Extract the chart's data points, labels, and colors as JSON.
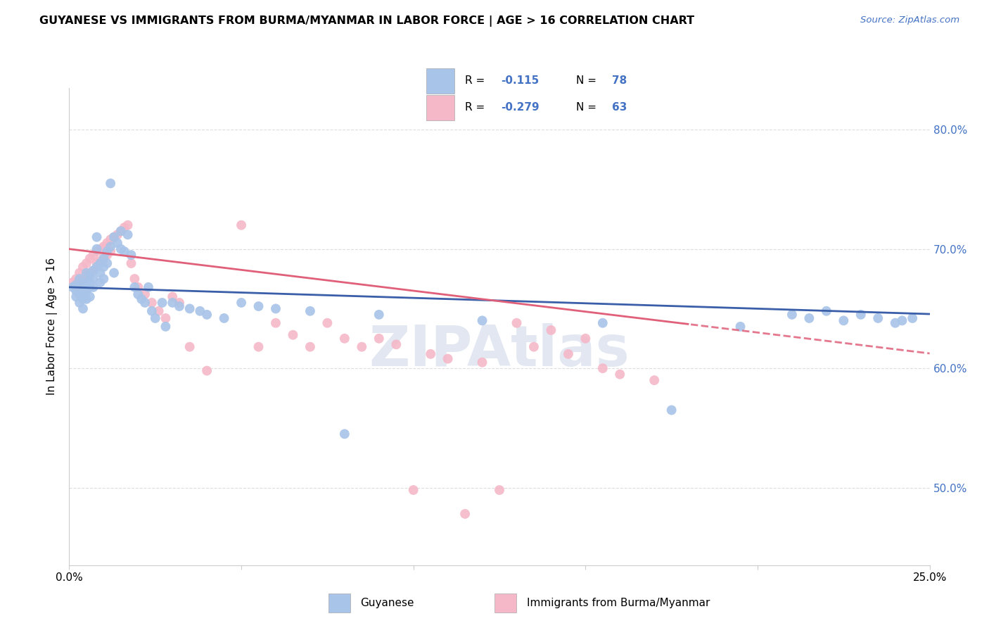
{
  "title": "GUYANESE VS IMMIGRANTS FROM BURMA/MYANMAR IN LABOR FORCE | AGE > 16 CORRELATION CHART",
  "source": "Source: ZipAtlas.com",
  "ylabel": "In Labor Force | Age > 16",
  "y_ticks": [
    0.5,
    0.6,
    0.7,
    0.8
  ],
  "y_tick_labels": [
    "50.0%",
    "60.0%",
    "70.0%",
    "80.0%"
  ],
  "xlim": [
    0.0,
    0.25
  ],
  "ylim": [
    0.435,
    0.835
  ],
  "blue_R": -0.115,
  "blue_N": 78,
  "pink_R": -0.279,
  "pink_N": 63,
  "blue_color": "#a8c4e8",
  "pink_color": "#f5b8c8",
  "blue_line_color": "#3a5fa8",
  "pink_line_color": "#e0607a",
  "legend_label_blue": "Guyanese",
  "legend_label_pink": "Immigrants from Burma/Myanmar",
  "watermark": "ZIPAtlas",
  "blue_scatter_x": [
    0.001,
    0.002,
    0.002,
    0.002,
    0.003,
    0.003,
    0.003,
    0.003,
    0.004,
    0.004,
    0.004,
    0.004,
    0.005,
    0.005,
    0.005,
    0.005,
    0.006,
    0.006,
    0.006,
    0.006,
    0.007,
    0.007,
    0.007,
    0.008,
    0.008,
    0.008,
    0.009,
    0.009,
    0.009,
    0.01,
    0.01,
    0.01,
    0.011,
    0.011,
    0.012,
    0.012,
    0.013,
    0.013,
    0.014,
    0.015,
    0.015,
    0.016,
    0.017,
    0.018,
    0.019,
    0.02,
    0.021,
    0.022,
    0.023,
    0.024,
    0.025,
    0.027,
    0.028,
    0.03,
    0.032,
    0.035,
    0.038,
    0.04,
    0.045,
    0.05,
    0.055,
    0.06,
    0.07,
    0.08,
    0.09,
    0.12,
    0.155,
    0.175,
    0.195,
    0.21,
    0.215,
    0.22,
    0.225,
    0.23,
    0.235,
    0.24,
    0.242,
    0.245
  ],
  "blue_scatter_y": [
    0.668,
    0.67,
    0.665,
    0.66,
    0.675,
    0.668,
    0.662,
    0.655,
    0.672,
    0.665,
    0.658,
    0.65,
    0.68,
    0.672,
    0.665,
    0.658,
    0.678,
    0.672,
    0.668,
    0.66,
    0.682,
    0.675,
    0.668,
    0.685,
    0.71,
    0.7,
    0.688,
    0.68,
    0.672,
    0.692,
    0.685,
    0.675,
    0.698,
    0.688,
    0.755,
    0.702,
    0.71,
    0.68,
    0.705,
    0.715,
    0.7,
    0.698,
    0.712,
    0.695,
    0.668,
    0.662,
    0.658,
    0.655,
    0.668,
    0.648,
    0.642,
    0.655,
    0.635,
    0.655,
    0.652,
    0.65,
    0.648,
    0.645,
    0.642,
    0.655,
    0.652,
    0.65,
    0.648,
    0.545,
    0.645,
    0.64,
    0.638,
    0.565,
    0.635,
    0.645,
    0.642,
    0.648,
    0.64,
    0.645,
    0.642,
    0.638,
    0.64,
    0.642
  ],
  "pink_scatter_x": [
    0.001,
    0.002,
    0.002,
    0.003,
    0.003,
    0.004,
    0.004,
    0.005,
    0.005,
    0.006,
    0.006,
    0.007,
    0.007,
    0.008,
    0.008,
    0.009,
    0.009,
    0.01,
    0.01,
    0.011,
    0.011,
    0.012,
    0.012,
    0.013,
    0.014,
    0.015,
    0.016,
    0.017,
    0.018,
    0.019,
    0.02,
    0.022,
    0.024,
    0.026,
    0.028,
    0.03,
    0.032,
    0.035,
    0.04,
    0.05,
    0.055,
    0.06,
    0.065,
    0.07,
    0.075,
    0.08,
    0.085,
    0.09,
    0.095,
    0.1,
    0.105,
    0.11,
    0.115,
    0.12,
    0.125,
    0.13,
    0.135,
    0.14,
    0.145,
    0.15,
    0.155,
    0.16,
    0.17
  ],
  "pink_scatter_y": [
    0.672,
    0.675,
    0.668,
    0.68,
    0.672,
    0.685,
    0.675,
    0.688,
    0.678,
    0.692,
    0.68,
    0.695,
    0.682,
    0.698,
    0.688,
    0.7,
    0.69,
    0.702,
    0.692,
    0.705,
    0.695,
    0.708,
    0.698,
    0.71,
    0.712,
    0.715,
    0.718,
    0.72,
    0.688,
    0.675,
    0.668,
    0.662,
    0.655,
    0.648,
    0.642,
    0.66,
    0.655,
    0.618,
    0.598,
    0.72,
    0.618,
    0.638,
    0.628,
    0.618,
    0.638,
    0.625,
    0.618,
    0.625,
    0.62,
    0.498,
    0.612,
    0.608,
    0.478,
    0.605,
    0.498,
    0.638,
    0.618,
    0.632,
    0.612,
    0.625,
    0.6,
    0.595,
    0.59
  ]
}
